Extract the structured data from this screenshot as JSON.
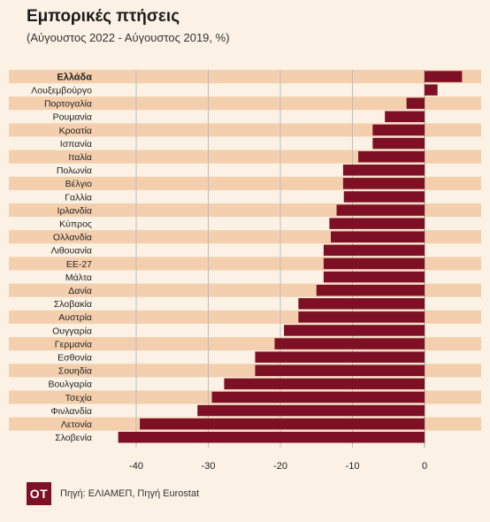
{
  "chart_data": {
    "type": "bar",
    "orientation": "horizontal",
    "title": "Εμπορικές πτήσεις",
    "subtitle": "(Αύγουστος 2022 - Αύγουστος 2019, %)",
    "categories": [
      "Ελλάδα",
      "Λουξεμβούργο",
      "Πορτογαλία",
      "Ρουμανία",
      "Κροατία",
      "Ισπανία",
      "Ιταλία",
      "Πολωνία",
      "Βέλγιο",
      "Γαλλία",
      "Ιρλανδία",
      "Κύπρος",
      "Ολλανδία",
      "Λιθουανία",
      "ΕΕ-27",
      "Μάλτα",
      "Δανία",
      "Σλοβακία",
      "Αυστρία",
      "Ουγγαρία",
      "Γερμανία",
      "Εσθονία",
      "Σουηδία",
      "Βουλγαρία",
      "Τσεχία",
      "Φινλανδία",
      "Λετονία",
      "Σλοβενία"
    ],
    "values": [
      5.2,
      1.8,
      -2.5,
      -5.5,
      -7.2,
      -7.2,
      -9.2,
      -11.3,
      -11.3,
      -11.2,
      -12.2,
      -13.2,
      -13.0,
      -14.0,
      -14.0,
      -14.0,
      -15.0,
      -17.5,
      -17.5,
      -19.5,
      -20.8,
      -23.5,
      -23.5,
      -27.8,
      -29.5,
      -31.5,
      -39.5,
      -42.5
    ],
    "highlight": "Ελλάδα",
    "xlim": [
      -45,
      7
    ],
    "xticks": [
      -40,
      -30,
      -20,
      -10,
      0
    ],
    "xtick_labels": [
      "-40",
      "-30",
      "-20",
      "-10",
      "0"
    ],
    "grid": true,
    "bar_color": "#7d1024",
    "band_color": "#f4cfae"
  },
  "logo_text": "OT",
  "source": "Πηγή: ΕΛΙΑΜΕΠ, Πηγή Eurostat"
}
